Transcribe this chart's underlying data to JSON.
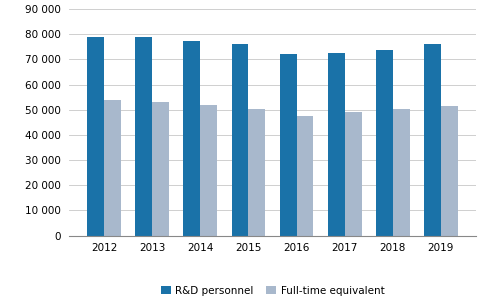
{
  "years": [
    2012,
    2013,
    2014,
    2015,
    2016,
    2017,
    2018,
    2019
  ],
  "rd_personnel": [
    79000,
    79000,
    77500,
    76000,
    72000,
    72500,
    73700,
    76200
  ],
  "full_time_equiv": [
    54000,
    53000,
    52000,
    50200,
    47500,
    49200,
    50200,
    51500
  ],
  "bar_color_rd": "#1a72a8",
  "bar_color_fte": "#a8b8cc",
  "ylim": [
    0,
    90000
  ],
  "yticks": [
    0,
    10000,
    20000,
    30000,
    40000,
    50000,
    60000,
    70000,
    80000,
    90000
  ],
  "legend_labels": [
    "R&D personnel",
    "Full-time equivalent"
  ],
  "background_color": "#ffffff",
  "grid_color": "#c8c8c8"
}
